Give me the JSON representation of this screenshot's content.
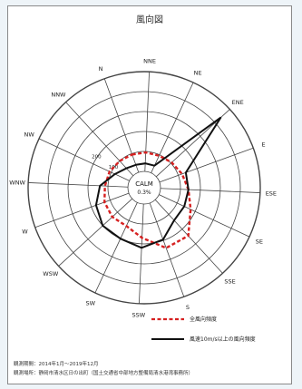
{
  "title": "風向図",
  "chart_data": {
    "type": "radar",
    "title": "風向図",
    "directions": [
      "N",
      "NNE",
      "NE",
      "ENE",
      "E",
      "ESE",
      "SE",
      "SSE",
      "S",
      "SSW",
      "SW",
      "WSW",
      "W",
      "WNW",
      "NW",
      "NNW"
    ],
    "direction_labels": [
      "N",
      "NNE",
      "NE",
      "ENE",
      "E",
      "ESE",
      "SE",
      "SSE",
      "S",
      "SSW",
      "SW",
      "WSW",
      "W",
      "WNW",
      "NW",
      "NNW"
    ],
    "rlim": [
      0,
      500
    ],
    "r_ticks": [
      100,
      200
    ],
    "center_label": "CALM",
    "calm_value": "0.3%",
    "series": [
      {
        "name": "全風向頻度",
        "style": "dashed",
        "color": "#d62020",
        "values": [
          95,
          95,
          95,
          105,
          120,
          140,
          175,
          245,
          240,
          170,
          130,
          135,
          130,
          115,
          110,
          100
        ]
      },
      {
        "name": "風速10m/s以上の風向頻度",
        "style": "solid",
        "color": "#111111",
        "values": [
          40,
          40,
          40,
          440,
          140,
          140,
          140,
          140,
          195,
          220,
          200,
          200,
          175,
          140,
          80,
          50
        ]
      }
    ],
    "legend": [
      "全風向頻度",
      "風速10m/s以上の風向頻度"
    ]
  },
  "footer": {
    "line1": "観測期間：2014年1月～2019年12月",
    "line2": "観測場所：静岡市清水区日の出町（国土交通省中部地方整備局清水港湾事務所）"
  }
}
